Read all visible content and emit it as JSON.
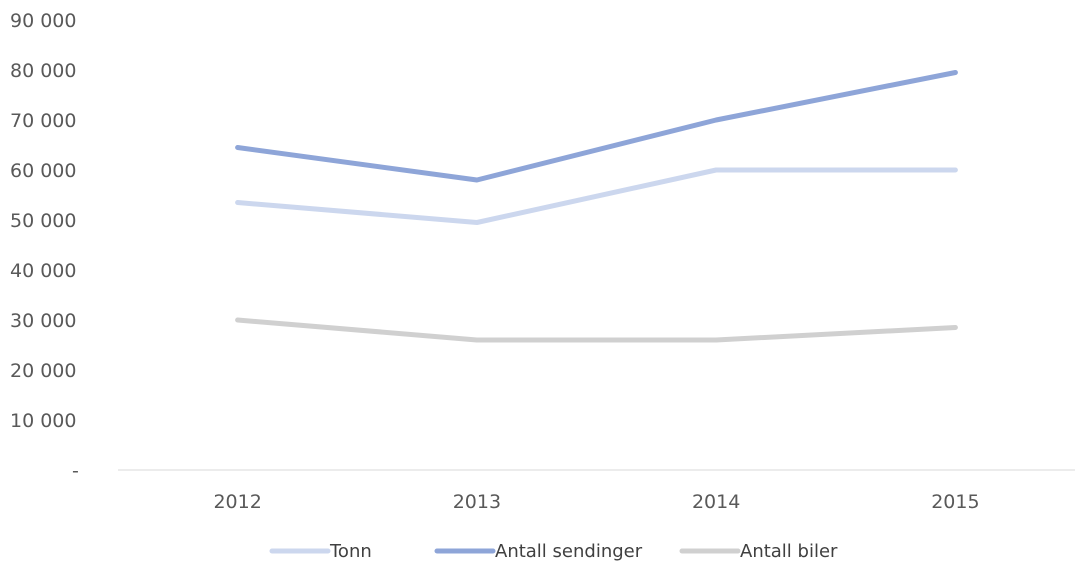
{
  "chart_data": {
    "type": "line",
    "categories": [
      "2012",
      "2013",
      "2014",
      "2015"
    ],
    "ylim": [
      0,
      90000
    ],
    "y_ticks": [
      0,
      10000,
      20000,
      30000,
      40000,
      50000,
      60000,
      70000,
      80000,
      90000
    ],
    "y_tick_labels": [
      "-",
      "10 000",
      "20 000",
      "30 000",
      "40 000",
      "50 000",
      "60 000",
      "70 000",
      "80 000",
      "90 000"
    ],
    "grid": false,
    "legend_position": "bottom",
    "series": [
      {
        "name": "Tonn",
        "color": "#ccd7ee",
        "values": [
          53500,
          49500,
          60000,
          60000
        ]
      },
      {
        "name": "Antall sendinger",
        "color": "#8ea5d8",
        "values": [
          64500,
          58000,
          70000,
          79500
        ]
      },
      {
        "name": "Antall biler",
        "color": "#d0d0d0",
        "values": [
          30000,
          26000,
          26000,
          28500
        ]
      }
    ]
  }
}
